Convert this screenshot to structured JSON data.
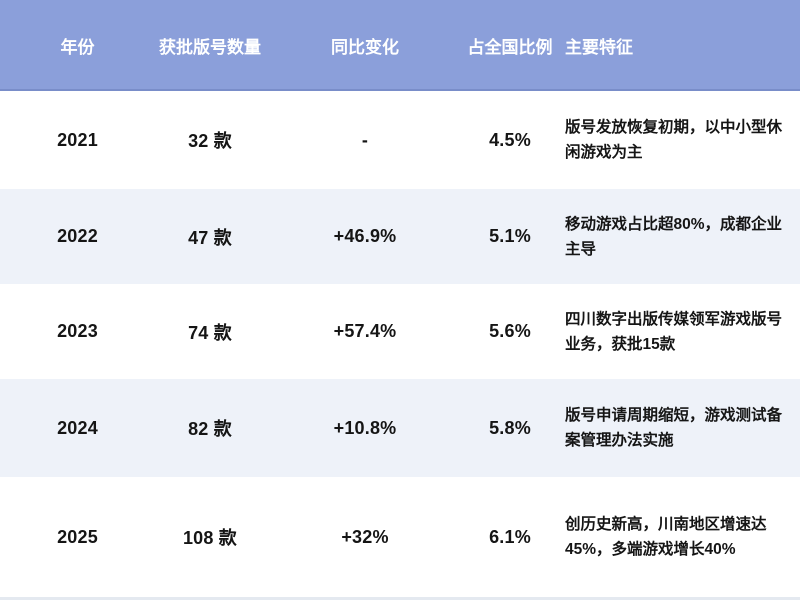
{
  "table": {
    "header_bg_color": "#8B9FDA",
    "stripe_row_color": "#EEF2F9",
    "header_text_color": "#FFFFFF",
    "body_text_color": "#151515",
    "columns": {
      "year": "年份",
      "count": "获批版号数量",
      "change": "同比变化",
      "share": "占全国比例",
      "features": "主要特征"
    },
    "rows": [
      {
        "year": "2021",
        "count": "32 款",
        "change": "-",
        "share": "4.5%",
        "features": "版号发放恢复初期，以中小型休闲游戏为主"
      },
      {
        "year": "2022",
        "count": "47 款",
        "change": "+46.9%",
        "share": "5.1%",
        "features": "移动游戏占比超80%，成都企业主导"
      },
      {
        "year": "2023",
        "count": "74 款",
        "change": "+57.4%",
        "share": "5.6%",
        "features": "四川数字出版传媒领军游戏版号业务，获批15款"
      },
      {
        "year": "2024",
        "count": "82 款",
        "change": "+10.8%",
        "share": "5.8%",
        "features": "版号申请周期缩短，游戏测试备案管理办法实施"
      },
      {
        "year": "2025",
        "count": "108 款",
        "change": "+32%",
        "share": "6.1%",
        "features": "创历史新高，川南地区增速达45%，多端游戏增长40%"
      }
    ]
  },
  "chart_data": {
    "type": "table",
    "title": "",
    "columns": [
      "年份",
      "获批版号数量",
      "同比变化",
      "占全国比例",
      "主要特征"
    ],
    "cells": [
      [
        "2021",
        "32 款",
        "-",
        "4.5%",
        "版号发放恢复初期，以中小型休闲游戏为主"
      ],
      [
        "2022",
        "47 款",
        "+46.9%",
        "5.1%",
        "移动游戏占比超80%，成都企业主导"
      ],
      [
        "2023",
        "74 款",
        "+57.4%",
        "5.6%",
        "四川数字出版传媒领军游戏版号业务，获批15款"
      ],
      [
        "2024",
        "82 款",
        "+10.8%",
        "5.8%",
        "版号申请周期缩短，游戏测试备案管理办法实施"
      ],
      [
        "2025",
        "108 款",
        "+32%",
        "6.1%",
        "创历史新高，川南地区增速达45%，多端游戏增长40%"
      ]
    ],
    "approved_counts": {
      "years": [
        2021,
        2022,
        2023,
        2024,
        2025
      ],
      "values": [
        32,
        47,
        74,
        82,
        108
      ]
    },
    "yoy_change_percent": {
      "years": [
        2022,
        2023,
        2024,
        2025
      ],
      "values": [
        46.9,
        57.4,
        10.8,
        32
      ]
    },
    "national_share_percent": {
      "years": [
        2021,
        2022,
        2023,
        2024,
        2025
      ],
      "values": [
        4.5,
        5.1,
        5.6,
        5.8,
        6.1
      ]
    }
  }
}
